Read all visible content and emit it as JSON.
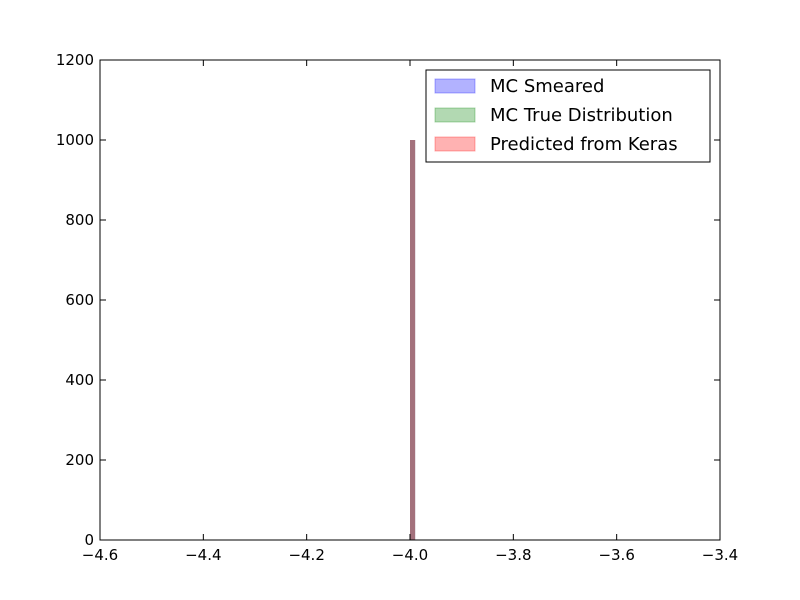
{
  "chart_data": {
    "type": "bar",
    "xlim": [
      -4.6,
      -3.4
    ],
    "ylim": [
      0,
      1200
    ],
    "x_ticks": [
      -4.6,
      -4.4,
      -4.2,
      -4.0,
      -3.8,
      -3.6,
      -3.4
    ],
    "x_tick_labels": [
      "−4.6",
      "−4.4",
      "−4.2",
      "−4.0",
      "−3.8",
      "−3.6",
      "−3.4"
    ],
    "y_ticks": [
      0,
      200,
      400,
      600,
      800,
      1000,
      1200
    ],
    "y_tick_labels": [
      "0",
      "200",
      "400",
      "600",
      "800",
      "1000",
      "1200"
    ],
    "grid": false,
    "legend_position": "top-right",
    "series": [
      {
        "name": "MC Smeared",
        "color": "#0000ff",
        "opacity": 0.3,
        "bins": [
          {
            "x0": -4.0,
            "x1": -3.99,
            "count": 1000
          }
        ]
      },
      {
        "name": "MC True Distribution",
        "color": "#008000",
        "opacity": 0.3,
        "bins": [
          {
            "x0": -4.0,
            "x1": -3.99,
            "count": 1000
          }
        ]
      },
      {
        "name": "Predicted from Keras",
        "color": "#ff0000",
        "opacity": 0.3,
        "bins": [
          {
            "x0": -4.0,
            "x1": -3.99,
            "count": 1000
          }
        ]
      }
    ]
  }
}
